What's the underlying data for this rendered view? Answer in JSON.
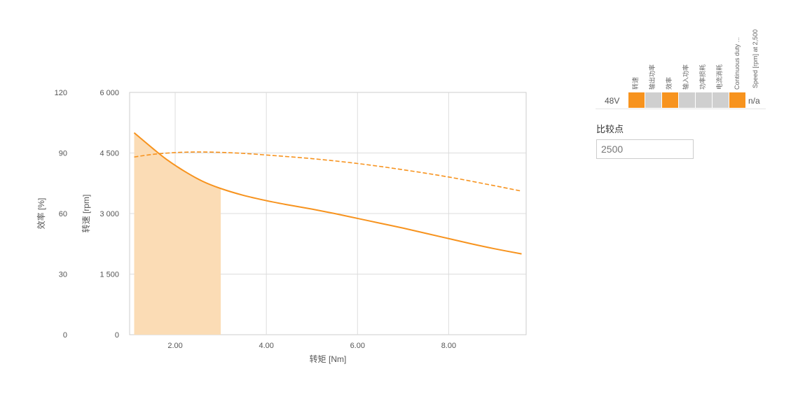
{
  "chart_data": {
    "type": "line",
    "xlabel": "转矩 [Nm]",
    "ylabel_left_outer": "效率 [%]",
    "ylabel_left_inner": "转速 [rpm]",
    "x_ticks": [
      "2.00",
      "4.00",
      "6.00",
      "8.00"
    ],
    "x_tick_values": [
      2,
      4,
      6,
      8
    ],
    "xlim": [
      1.0,
      9.7
    ],
    "efficiency_ticks": [
      "0",
      "30",
      "60",
      "90",
      "120"
    ],
    "efficiency_lim": [
      0,
      120
    ],
    "speed_ticks": [
      "0",
      "1 500",
      "3 000",
      "4 500",
      "6 000"
    ],
    "speed_lim": [
      0,
      6000
    ],
    "grid": true,
    "series": [
      {
        "name": "转速",
        "axis": "speed",
        "style": "solid",
        "color": "#f7931e",
        "x": [
          1.1,
          1.5,
          1.8,
          2.2,
          2.6,
          3.0,
          3.5,
          4.0,
          4.5,
          5.0,
          5.5,
          6.0,
          6.5,
          7.0,
          7.5,
          8.0,
          8.5,
          9.0,
          9.6
        ],
        "y": [
          5000,
          4620,
          4350,
          4050,
          3800,
          3620,
          3450,
          3320,
          3210,
          3110,
          3000,
          2880,
          2760,
          2640,
          2510,
          2380,
          2250,
          2130,
          2000
        ]
      },
      {
        "name": "效率",
        "axis": "efficiency",
        "style": "dashed",
        "color": "#f7931e",
        "x": [
          1.1,
          1.5,
          2.0,
          2.5,
          3.0,
          3.5,
          4.0,
          5.0,
          6.0,
          7.0,
          8.0,
          9.0,
          9.6
        ],
        "y": [
          88,
          89.3,
          90.2,
          90.5,
          90.3,
          89.8,
          89.0,
          87.2,
          84.8,
          81.7,
          78.1,
          73.8,
          71.1
        ]
      }
    ],
    "shaded_region": {
      "x_from": 1.1,
      "x_to": 3.0,
      "color": "#fbdcb5",
      "axis": "speed"
    }
  },
  "legend": {
    "columns": [
      {
        "label": "转速",
        "state": "on"
      },
      {
        "label": "输出功率",
        "state": "off"
      },
      {
        "label": "效率",
        "state": "on"
      },
      {
        "label": "输入功率",
        "state": "off"
      },
      {
        "label": "功率损耗",
        "state": "off"
      },
      {
        "label": "电流消耗",
        "state": "off"
      },
      {
        "label": "Continuous duty ...",
        "state": "on"
      }
    ],
    "extra_column": "Speed [rpm] at 2,500",
    "row_label": "48V",
    "row_value": "n/a",
    "on_color": "#f7931e",
    "off_color": "#cfcfcf"
  },
  "compare": {
    "title": "比较点",
    "value": "2500"
  }
}
